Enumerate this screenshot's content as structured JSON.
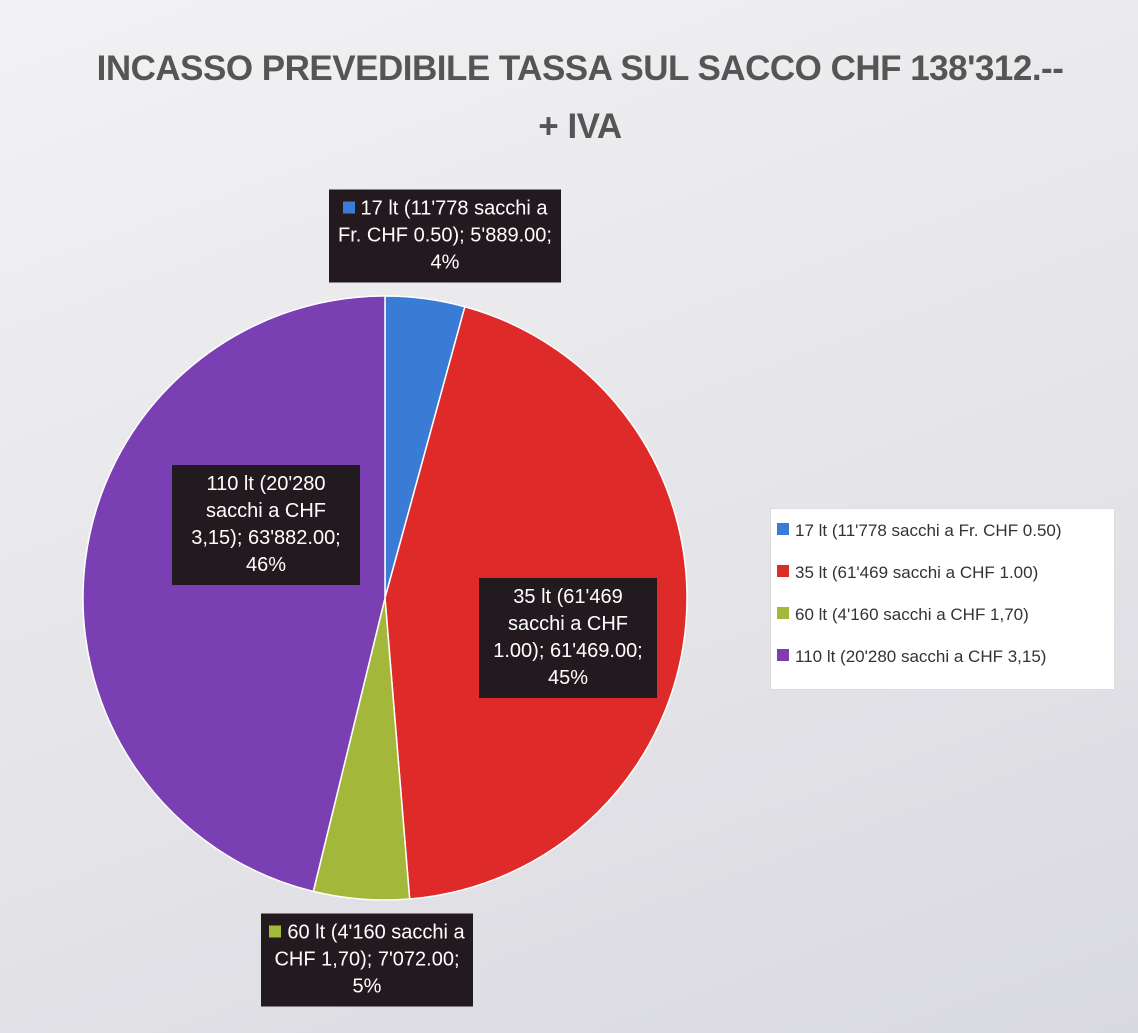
{
  "chart_data": {
    "type": "pie",
    "title": "INCASSO PREVEDIBILE TASSA SUL SACCO CHF 138'312.-- + IVA",
    "categories": [
      "17 lt (11'778 sacchi a Fr. CHF 0.50)",
      "35 lt (61'469 sacchi a CHF 1.00)",
      "60 lt (4'160 sacchi a CHF 1,70)",
      "110 lt (20'280 sacchi a CHF 3,15)"
    ],
    "values": [
      5889,
      61469,
      7072,
      63882
    ],
    "value_labels": [
      "17 lt (11'778 sacchi a Fr. CHF 0.50); 5'889.00; 4%",
      "35 lt (61'469 sacchi a CHF 1.00); 61'469.00; 45%",
      "60 lt (4'160 sacchi a CHF 1,70); 7'072.00; 5%",
      "110 lt (20'280 sacchi a CHF 3,15); 63'882.00; 46%"
    ],
    "colors": [
      "#3a7bd5",
      "#df2a2a",
      "#a3b83a",
      "#7a3fb2"
    ],
    "legend": "right"
  }
}
